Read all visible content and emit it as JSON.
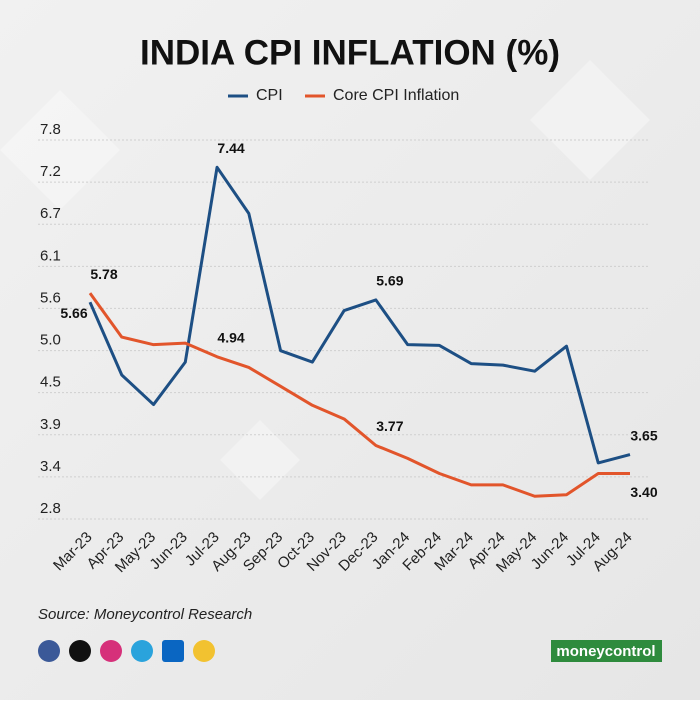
{
  "chart_data": {
    "type": "line",
    "title": "INDIA CPI INFLATION (%)",
    "categories": [
      "Mar-23",
      "Apr-23",
      "May-23",
      "Jun-23",
      "Jul-23",
      "Aug-23",
      "Sep-23",
      "Oct-23",
      "Nov-23",
      "Dec-23",
      "Jan-24",
      "Feb-24",
      "Mar-24",
      "Apr-24",
      "May-24",
      "Jun-24",
      "Jul-24",
      "Aug-24"
    ],
    "series": [
      {
        "name": "CPI",
        "color": "#1d4f84",
        "values": [
          5.66,
          4.7,
          4.31,
          4.87,
          7.44,
          6.83,
          5.02,
          4.87,
          5.55,
          5.69,
          5.1,
          5.09,
          4.85,
          4.83,
          4.75,
          5.08,
          3.54,
          3.65
        ],
        "value_labels": [
          "5.66",
          null,
          null,
          null,
          "7.44",
          null,
          null,
          null,
          null,
          "5.69",
          null,
          null,
          null,
          null,
          null,
          null,
          null,
          "3.65"
        ]
      },
      {
        "name": "Core CPI Inflation",
        "color": "#e2552b",
        "values": [
          5.78,
          5.2,
          5.1,
          5.12,
          4.94,
          4.8,
          4.55,
          4.3,
          4.12,
          3.77,
          3.6,
          3.4,
          3.25,
          3.25,
          3.1,
          3.12,
          3.4,
          3.4
        ],
        "value_labels": [
          "5.78",
          null,
          null,
          null,
          "4.94",
          null,
          null,
          null,
          null,
          "3.77",
          null,
          null,
          null,
          null,
          null,
          null,
          null,
          "3.40"
        ]
      }
    ],
    "ylim": [
      2.8,
      7.8
    ],
    "yticks": [
      2.8,
      {
        "value": 3.356,
        "label": "3.4"
      },
      {
        "value": 3.911,
        "label": "3.9"
      },
      {
        "value": 4.467,
        "label": "4.5"
      },
      {
        "value": 5.022,
        "label": "5.0"
      },
      {
        "value": 5.578,
        "label": "5.6"
      },
      {
        "value": 6.133,
        "label": "6.1"
      },
      {
        "value": 6.689,
        "label": "6.7"
      },
      {
        "value": 7.244,
        "label": "7.2"
      },
      7.8
    ],
    "grid": true,
    "source": "Source: Moneycontrol Research",
    "brand": "moneycontrol"
  }
}
